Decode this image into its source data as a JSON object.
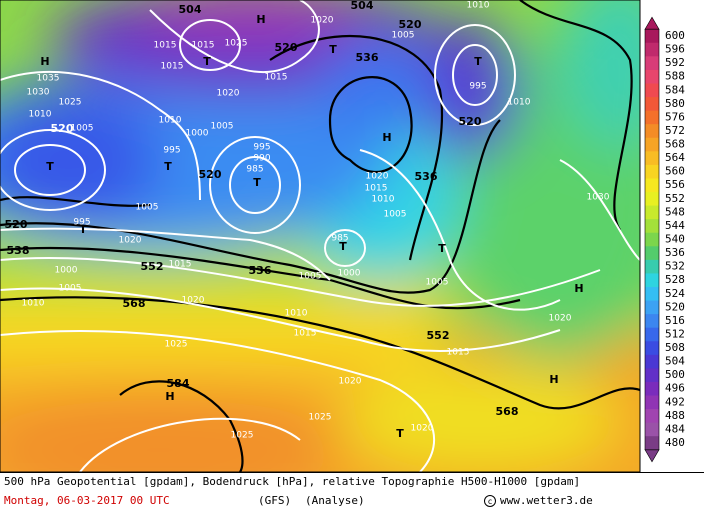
{
  "map": {
    "labels": [
      "504",
      "H",
      "1020",
      "504",
      "520",
      "1010",
      "1015",
      "1015",
      "1025",
      "520",
      "1005",
      "536",
      "T",
      "T",
      "1015",
      "1020",
      "1015",
      "1035",
      "H",
      "1030",
      "1025",
      "1010",
      "520",
      "1005",
      "T",
      "995",
      "1010",
      "1010",
      "1005",
      "995",
      "990",
      "985",
      "T",
      "520",
      "1000",
      "995",
      "T",
      "520",
      "H",
      "1020",
      "1015",
      "536",
      "1010",
      "T",
      "1005",
      "1030",
      "520",
      "1005",
      "T",
      "995",
      "538",
      "1000",
      "552",
      "1015",
      "T",
      "985",
      "1000",
      "1005",
      "536",
      "1005",
      "T",
      "1010",
      "1005",
      "568",
      "1020",
      "1010",
      "1015",
      "552",
      "1015",
      "H",
      "1020",
      "1025",
      "584",
      "H",
      "1020",
      "1025",
      "T",
      "1025",
      "1020",
      "568",
      "H",
      "1020"
    ],
    "colorbar": {
      "ticks": [
        600,
        596,
        592,
        588,
        584,
        580,
        576,
        572,
        568,
        564,
        560,
        556,
        552,
        548,
        544,
        540,
        536,
        532,
        528,
        524,
        520,
        516,
        512,
        508,
        504,
        500,
        496,
        492,
        488,
        484,
        480
      ],
      "colors": [
        "#a8185c",
        "#c02a6c",
        "#d83c78",
        "#e8466c",
        "#f04a50",
        "#f25838",
        "#f4702a",
        "#f48c26",
        "#f6a426",
        "#f8bc24",
        "#f8d422",
        "#f6e820",
        "#e8f022",
        "#c8ea2c",
        "#a4e03a",
        "#7cd64c",
        "#54cc6c",
        "#38ccae",
        "#2ed4e0",
        "#34bef4",
        "#3ca2f4",
        "#3c86f0",
        "#3868ec",
        "#3a4ce2",
        "#4a38d4",
        "#6230c8",
        "#7a2cbc",
        "#9034b4",
        "#a044b0",
        "#9a52a8",
        "#7a3c86"
      ]
    }
  },
  "footer": {
    "line1": "500 hPa Geopotential [gpdam], Bodendruck [hPa], relative Topographie H500-H1000 [gpdam]",
    "date": "Montag, 06-03-2017  00 UTC",
    "model": "(GFS)",
    "run": "(Analyse)",
    "site": "www.wetter3.de"
  }
}
